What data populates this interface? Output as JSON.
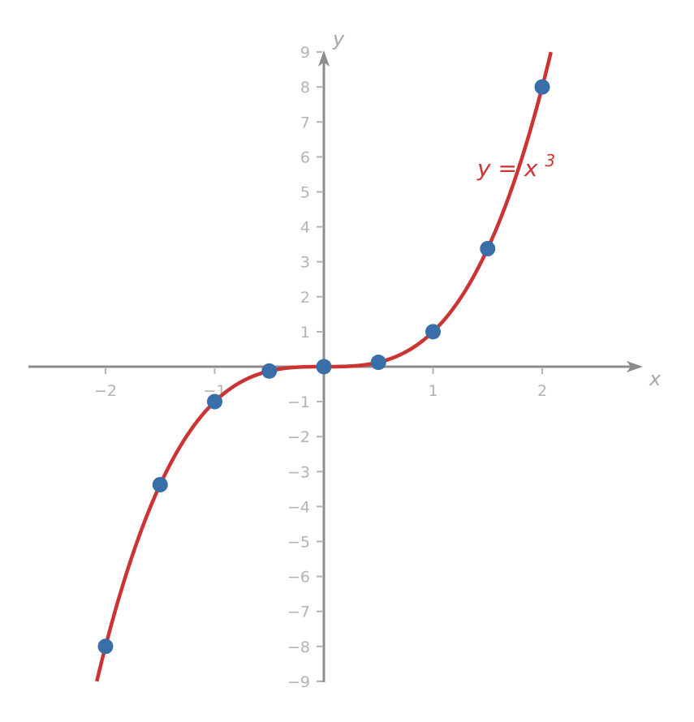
{
  "chart_data": {
    "type": "line",
    "title": "",
    "xlabel": "x",
    "ylabel": "y",
    "function_label": "y = x³",
    "function_label_base": "y = x",
    "function_label_exp": "3",
    "xlim": [
      -2.7,
      2.9
    ],
    "ylim": [
      -9,
      9
    ],
    "x_ticks": [
      -2,
      -1,
      1,
      2
    ],
    "x_tick_labels": [
      "−2",
      "−1",
      "1",
      "2"
    ],
    "y_ticks": [
      9,
      8,
      7,
      6,
      5,
      4,
      3,
      2,
      1,
      -1,
      -2,
      -3,
      -4,
      -5,
      -6,
      -7,
      -8,
      -9
    ],
    "y_tick_labels": [
      "9",
      "8",
      "7",
      "6",
      "5",
      "4",
      "3",
      "2",
      "1",
      "−1",
      "−2",
      "−3",
      "−4",
      "−5",
      "−6",
      "−7",
      "−8",
      "−9"
    ],
    "grid": false,
    "series": [
      {
        "name": "y = x^3 curve",
        "kind": "line",
        "color": "#cc3333",
        "x_range": [
          -2.08,
          2.08
        ]
      },
      {
        "name": "sample points",
        "kind": "scatter",
        "color": "#3a6ea8",
        "x": [
          -2,
          -1.5,
          -1,
          -0.5,
          0,
          0.5,
          1,
          1.5,
          2
        ],
        "y": [
          -8,
          -3.375,
          -1,
          -0.125,
          0,
          0.125,
          1,
          3.375,
          8
        ]
      }
    ]
  },
  "colors": {
    "axis": "#8c8c8c",
    "tick_label": "#b3b3b3",
    "curve": "#cc3333",
    "points": "#3a6ea8"
  }
}
